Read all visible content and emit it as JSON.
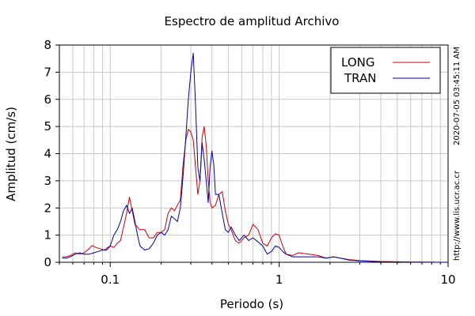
{
  "colors": {
    "long": "#cc0000",
    "tran": "#0000aa",
    "grid": "#c8c8c8",
    "axis": "#000000"
  },
  "side_notes": {
    "timestamp": "2020-07-05 03:45:11 AM",
    "url": "http://www.lis.ucr.ac.cr"
  },
  "chart_data": {
    "type": "line",
    "title": "Espectro de amplitud Archivo",
    "xlabel": "Periodo (s)",
    "ylabel": "Amplitud (cm/s)",
    "x_scale": "log",
    "xlim": [
      0.05,
      10
    ],
    "ylim": [
      0,
      8
    ],
    "x_ticks": [
      0.1,
      1,
      10
    ],
    "x_tick_labels": [
      "0.1",
      "1",
      "10"
    ],
    "y_ticks": [
      0,
      1,
      2,
      3,
      4,
      5,
      6,
      7,
      8
    ],
    "y_tick_labels": [
      "0",
      "1",
      "2",
      "3",
      "4",
      "5",
      "6",
      "7",
      "8"
    ],
    "grid": true,
    "legend_position": "top-right",
    "series": [
      {
        "name": "LONG",
        "points": [
          [
            0.052,
            0.2
          ],
          [
            0.055,
            0.2
          ],
          [
            0.058,
            0.25
          ],
          [
            0.062,
            0.35
          ],
          [
            0.066,
            0.3
          ],
          [
            0.07,
            0.35
          ],
          [
            0.075,
            0.5
          ],
          [
            0.078,
            0.62
          ],
          [
            0.082,
            0.55
          ],
          [
            0.087,
            0.5
          ],
          [
            0.092,
            0.45
          ],
          [
            0.097,
            0.55
          ],
          [
            0.1,
            0.6
          ],
          [
            0.105,
            0.55
          ],
          [
            0.11,
            0.7
          ],
          [
            0.115,
            0.8
          ],
          [
            0.12,
            1.3
          ],
          [
            0.125,
            1.8
          ],
          [
            0.13,
            2.4
          ],
          [
            0.135,
            1.9
          ],
          [
            0.14,
            1.4
          ],
          [
            0.15,
            1.2
          ],
          [
            0.16,
            1.2
          ],
          [
            0.17,
            0.9
          ],
          [
            0.18,
            0.9
          ],
          [
            0.19,
            1.1
          ],
          [
            0.2,
            1.1
          ],
          [
            0.21,
            1.2
          ],
          [
            0.22,
            1.8
          ],
          [
            0.23,
            2.0
          ],
          [
            0.24,
            1.9
          ],
          [
            0.25,
            2.1
          ],
          [
            0.26,
            2.3
          ],
          [
            0.27,
            3.6
          ],
          [
            0.28,
            4.5
          ],
          [
            0.29,
            4.9
          ],
          [
            0.3,
            4.8
          ],
          [
            0.31,
            4.5
          ],
          [
            0.32,
            3.5
          ],
          [
            0.33,
            2.5
          ],
          [
            0.34,
            3.0
          ],
          [
            0.35,
            4.6
          ],
          [
            0.36,
            5.0
          ],
          [
            0.37,
            4.3
          ],
          [
            0.38,
            3.0
          ],
          [
            0.39,
            2.2
          ],
          [
            0.4,
            2.0
          ],
          [
            0.42,
            2.1
          ],
          [
            0.44,
            2.5
          ],
          [
            0.46,
            2.6
          ],
          [
            0.48,
            1.9
          ],
          [
            0.5,
            1.4
          ],
          [
            0.52,
            1.2
          ],
          [
            0.55,
            0.8
          ],
          [
            0.58,
            0.7
          ],
          [
            0.62,
            0.9
          ],
          [
            0.66,
            1.0
          ],
          [
            0.7,
            1.4
          ],
          [
            0.75,
            1.2
          ],
          [
            0.8,
            0.7
          ],
          [
            0.85,
            0.6
          ],
          [
            0.9,
            0.9
          ],
          [
            0.95,
            1.05
          ],
          [
            1.0,
            1.0
          ],
          [
            1.05,
            0.6
          ],
          [
            1.1,
            0.3
          ],
          [
            1.2,
            0.25
          ],
          [
            1.3,
            0.35
          ],
          [
            1.5,
            0.3
          ],
          [
            1.7,
            0.25
          ],
          [
            1.9,
            0.15
          ],
          [
            2.1,
            0.2
          ],
          [
            2.3,
            0.15
          ],
          [
            2.6,
            0.1
          ],
          [
            3.0,
            0.06
          ],
          [
            4.0,
            0.03
          ],
          [
            6.0,
            0.01
          ],
          [
            10.0,
            0.0
          ]
        ]
      },
      {
        "name": "TRAN",
        "points": [
          [
            0.052,
            0.15
          ],
          [
            0.055,
            0.15
          ],
          [
            0.058,
            0.2
          ],
          [
            0.062,
            0.3
          ],
          [
            0.066,
            0.35
          ],
          [
            0.07,
            0.3
          ],
          [
            0.075,
            0.3
          ],
          [
            0.08,
            0.35
          ],
          [
            0.085,
            0.4
          ],
          [
            0.09,
            0.45
          ],
          [
            0.095,
            0.45
          ],
          [
            0.1,
            0.6
          ],
          [
            0.105,
            1.0
          ],
          [
            0.11,
            1.2
          ],
          [
            0.115,
            1.5
          ],
          [
            0.12,
            1.9
          ],
          [
            0.125,
            2.1
          ],
          [
            0.13,
            1.8
          ],
          [
            0.135,
            2.0
          ],
          [
            0.14,
            1.5
          ],
          [
            0.145,
            1.0
          ],
          [
            0.15,
            0.6
          ],
          [
            0.16,
            0.45
          ],
          [
            0.17,
            0.5
          ],
          [
            0.18,
            0.7
          ],
          [
            0.19,
            1.0
          ],
          [
            0.2,
            1.1
          ],
          [
            0.21,
            1.0
          ],
          [
            0.22,
            1.2
          ],
          [
            0.23,
            1.7
          ],
          [
            0.24,
            1.6
          ],
          [
            0.25,
            1.5
          ],
          [
            0.26,
            2.0
          ],
          [
            0.27,
            3.2
          ],
          [
            0.28,
            4.6
          ],
          [
            0.29,
            6.0
          ],
          [
            0.3,
            7.0
          ],
          [
            0.31,
            7.7
          ],
          [
            0.32,
            5.8
          ],
          [
            0.33,
            3.5
          ],
          [
            0.34,
            3.0
          ],
          [
            0.35,
            4.4
          ],
          [
            0.36,
            3.8
          ],
          [
            0.37,
            3.0
          ],
          [
            0.38,
            2.2
          ],
          [
            0.39,
            3.5
          ],
          [
            0.4,
            4.1
          ],
          [
            0.41,
            3.6
          ],
          [
            0.42,
            2.5
          ],
          [
            0.44,
            2.5
          ],
          [
            0.46,
            1.8
          ],
          [
            0.48,
            1.2
          ],
          [
            0.5,
            1.1
          ],
          [
            0.52,
            1.3
          ],
          [
            0.55,
            1.0
          ],
          [
            0.58,
            0.8
          ],
          [
            0.62,
            1.0
          ],
          [
            0.66,
            0.8
          ],
          [
            0.7,
            0.9
          ],
          [
            0.75,
            0.75
          ],
          [
            0.8,
            0.6
          ],
          [
            0.85,
            0.3
          ],
          [
            0.9,
            0.4
          ],
          [
            0.95,
            0.6
          ],
          [
            1.0,
            0.55
          ],
          [
            1.05,
            0.4
          ],
          [
            1.1,
            0.3
          ],
          [
            1.2,
            0.2
          ],
          [
            1.3,
            0.2
          ],
          [
            1.5,
            0.2
          ],
          [
            1.7,
            0.2
          ],
          [
            1.9,
            0.15
          ],
          [
            2.1,
            0.2
          ],
          [
            2.3,
            0.15
          ],
          [
            2.6,
            0.08
          ],
          [
            3.0,
            0.05
          ],
          [
            4.0,
            0.02
          ],
          [
            6.0,
            0.01
          ],
          [
            10.0,
            0.0
          ]
        ]
      }
    ]
  }
}
